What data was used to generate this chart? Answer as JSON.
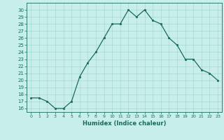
{
  "x": [
    0,
    1,
    2,
    3,
    4,
    5,
    6,
    7,
    8,
    9,
    10,
    11,
    12,
    13,
    14,
    15,
    16,
    17,
    18,
    19,
    20,
    21,
    22,
    23
  ],
  "y": [
    17.5,
    17.5,
    17,
    16,
    16,
    17,
    20.5,
    22.5,
    24,
    26,
    28,
    28,
    30,
    29,
    30,
    28.5,
    28,
    26,
    25,
    23,
    23,
    21.5,
    21,
    20
  ],
  "xlabel": "Humidex (Indice chaleur)",
  "xlim": [
    -0.5,
    23.5
  ],
  "ylim": [
    15.5,
    31
  ],
  "yticks": [
    16,
    17,
    18,
    19,
    20,
    21,
    22,
    23,
    24,
    25,
    26,
    27,
    28,
    29,
    30
  ],
  "xticks": [
    0,
    1,
    2,
    3,
    4,
    5,
    6,
    7,
    8,
    9,
    10,
    11,
    12,
    13,
    14,
    15,
    16,
    17,
    18,
    19,
    20,
    21,
    22,
    23
  ],
  "line_color": "#1a6b5a",
  "marker_color": "#1a6b5a",
  "bg_color": "#c8eeeb",
  "grid_color": "#a8d8d4",
  "tick_color": "#1a6b5a",
  "spine_color": "#1a6b5a"
}
